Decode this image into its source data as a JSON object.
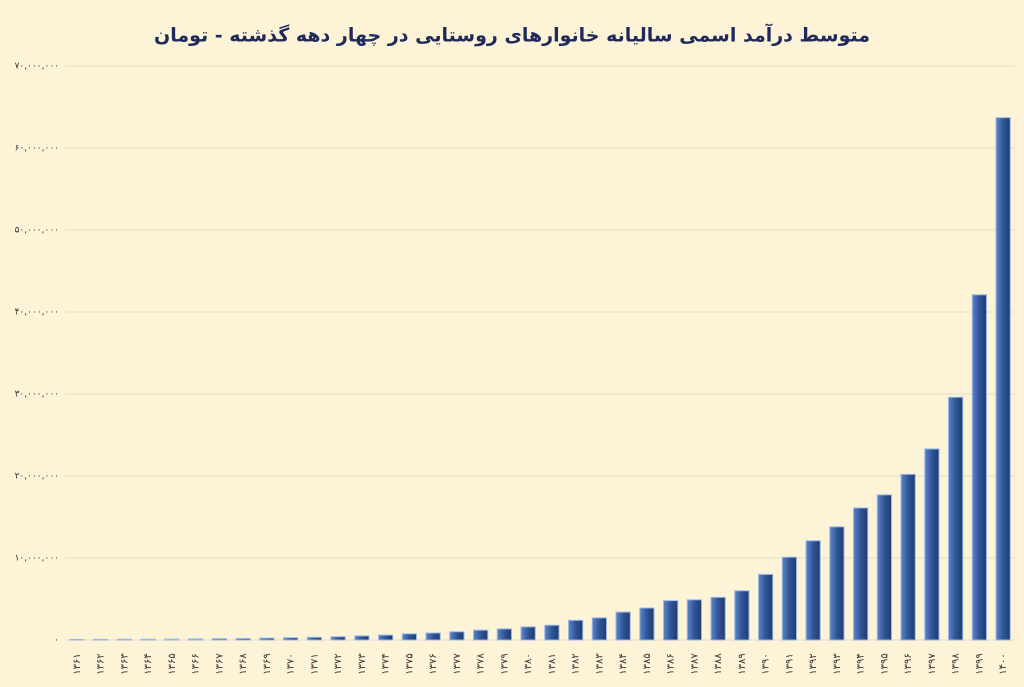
{
  "chart_data": {
    "type": "bar",
    "title": "متوسط درآمد اسمی سالیانه خانوارهای روستایی در چهار دهه گذشته - تومان",
    "categories": [
      "۱۳۶۱",
      "۱۳۶۲",
      "۱۳۶۳",
      "۱۳۶۴",
      "۱۳۶۵",
      "۱۳۶۶",
      "۱۳۶۷",
      "۱۳۶۸",
      "۱۳۶۹",
      "۱۳۷۰",
      "۱۳۷۱",
      "۱۳۷۲",
      "۱۳۷۳",
      "۱۳۷۴",
      "۱۳۷۵",
      "۱۳۷۶",
      "۱۳۷۷",
      "۱۳۷۸",
      "۱۳۷۹",
      "۱۳۸۰",
      "۱۳۸۱",
      "۱۳۸۲",
      "۱۳۸۳",
      "۱۳۸۴",
      "۱۳۸۵",
      "۱۳۸۶",
      "۱۳۸۷",
      "۱۳۸۸",
      "۱۳۸۹",
      "۱۳۹۰",
      "۱۳۹۱",
      "۱۳۹۲",
      "۱۳۹۳",
      "۱۳۹۴",
      "۱۳۹۵",
      "۱۳۹۶",
      "۱۳۹۷",
      "۱۳۹۸",
      "۱۳۹۹",
      "۱۴۰۰"
    ],
    "values": [
      70000,
      80000,
      90000,
      100000,
      110000,
      130000,
      160000,
      190000,
      230000,
      280000,
      330000,
      400000,
      500000,
      600000,
      750000,
      850000,
      1000000,
      1200000,
      1350000,
      1600000,
      1800000,
      2400000,
      2700000,
      3400000,
      3900000,
      4800000,
      4900000,
      5200000,
      6000000,
      8000000,
      10100000,
      12100000,
      13800000,
      16100000,
      17700000,
      20200000,
      23300000,
      29600000,
      42100000,
      63700000
    ],
    "color": "#2f5597",
    "ylim": [
      0,
      70000000
    ],
    "yticks": [
      {
        "value": 0,
        "label": "۰"
      },
      {
        "value": 10000000,
        "label": "۱۰,۰۰۰,۰۰۰"
      },
      {
        "value": 20000000,
        "label": "۲۰,۰۰۰,۰۰۰"
      },
      {
        "value": 30000000,
        "label": "۳۰,۰۰۰,۰۰۰"
      },
      {
        "value": 40000000,
        "label": "۴۰,۰۰۰,۰۰۰"
      },
      {
        "value": 50000000,
        "label": "۵۰,۰۰۰,۰۰۰"
      },
      {
        "value": 60000000,
        "label": "۶۰,۰۰۰,۰۰۰"
      },
      {
        "value": 70000000,
        "label": "۷۰,۰۰۰,۰۰۰"
      }
    ],
    "grid": true
  }
}
